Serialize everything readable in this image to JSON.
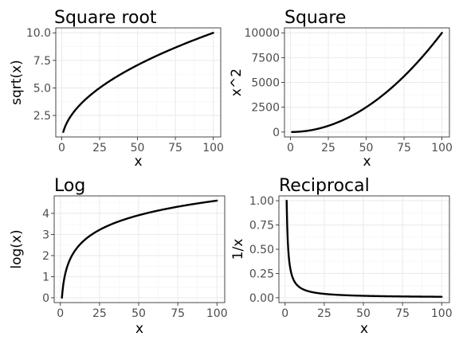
{
  "chart_data": [
    {
      "type": "line",
      "title": "Square root",
      "xlabel": "x",
      "ylabel": "sqrt(x)",
      "function": "sqrt",
      "xlim": [
        1,
        100
      ],
      "ylim": [
        1,
        10
      ],
      "xticks": [
        0,
        25,
        50,
        75,
        100
      ],
      "xtick_labels": [
        "0",
        "25",
        "50",
        "75",
        "100"
      ],
      "yticks": [
        2.5,
        5.0,
        7.5,
        10.0
      ],
      "ytick_labels": [
        "2.5",
        "5.0",
        "7.5",
        "10.0"
      ],
      "x": [
        1,
        2,
        3,
        5,
        8,
        12,
        17,
        25,
        35,
        50,
        65,
        80,
        100
      ],
      "y": [
        1.0,
        1.41,
        1.73,
        2.24,
        2.83,
        3.46,
        4.12,
        5.0,
        5.92,
        7.07,
        8.06,
        8.94,
        10.0
      ],
      "grid": true,
      "legend": "none"
    },
    {
      "type": "line",
      "title": "Square",
      "xlabel": "x",
      "ylabel": "x^2",
      "function": "square",
      "xlim": [
        1,
        100
      ],
      "ylim": [
        1,
        10000
      ],
      "xticks": [
        0,
        25,
        50,
        75,
        100
      ],
      "xtick_labels": [
        "0",
        "25",
        "50",
        "75",
        "100"
      ],
      "yticks": [
        0,
        2500,
        5000,
        7500,
        10000
      ],
      "ytick_labels": [
        "0",
        "2500",
        "5000",
        "7500",
        "10000"
      ],
      "x": [
        1,
        10,
        20,
        30,
        40,
        50,
        60,
        70,
        80,
        90,
        100
      ],
      "y": [
        1,
        100,
        400,
        900,
        1600,
        2500,
        3600,
        4900,
        6400,
        8100,
        10000
      ],
      "grid": true,
      "legend": "none"
    },
    {
      "type": "line",
      "title": "Log",
      "xlabel": "x",
      "ylabel": "log(x)",
      "function": "log",
      "xlim": [
        1,
        100
      ],
      "ylim": [
        0,
        4.6
      ],
      "xticks": [
        0,
        25,
        50,
        75,
        100
      ],
      "xtick_labels": [
        "0",
        "25",
        "50",
        "75",
        "100"
      ],
      "yticks": [
        0,
        1,
        2,
        3,
        4
      ],
      "ytick_labels": [
        "0",
        "1",
        "2",
        "3",
        "4"
      ],
      "x": [
        1,
        2,
        3,
        5,
        8,
        12,
        17,
        25,
        35,
        50,
        65,
        80,
        100
      ],
      "y": [
        0.0,
        0.69,
        1.1,
        1.61,
        2.08,
        2.48,
        2.83,
        3.22,
        3.56,
        3.91,
        4.17,
        4.38,
        4.61
      ],
      "grid": true,
      "legend": "none"
    },
    {
      "type": "line",
      "title": "Reciprocal",
      "xlabel": "x",
      "ylabel": "1/x",
      "function": "reciprocal",
      "xlim": [
        1,
        100
      ],
      "ylim": [
        0,
        1
      ],
      "xticks": [
        0,
        25,
        50,
        75,
        100
      ],
      "xtick_labels": [
        "0",
        "25",
        "50",
        "75",
        "100"
      ],
      "yticks": [
        0,
        0.25,
        0.5,
        0.75,
        1.0
      ],
      "ytick_labels": [
        "0.00",
        "0.25",
        "0.50",
        "0.75",
        "1.00"
      ],
      "x": [
        1,
        2,
        3,
        5,
        8,
        12,
        17,
        25,
        35,
        50,
        65,
        80,
        100
      ],
      "y": [
        1.0,
        0.5,
        0.333,
        0.2,
        0.125,
        0.083,
        0.059,
        0.04,
        0.029,
        0.02,
        0.015,
        0.0125,
        0.01
      ],
      "grid": true,
      "legend": "none"
    }
  ]
}
